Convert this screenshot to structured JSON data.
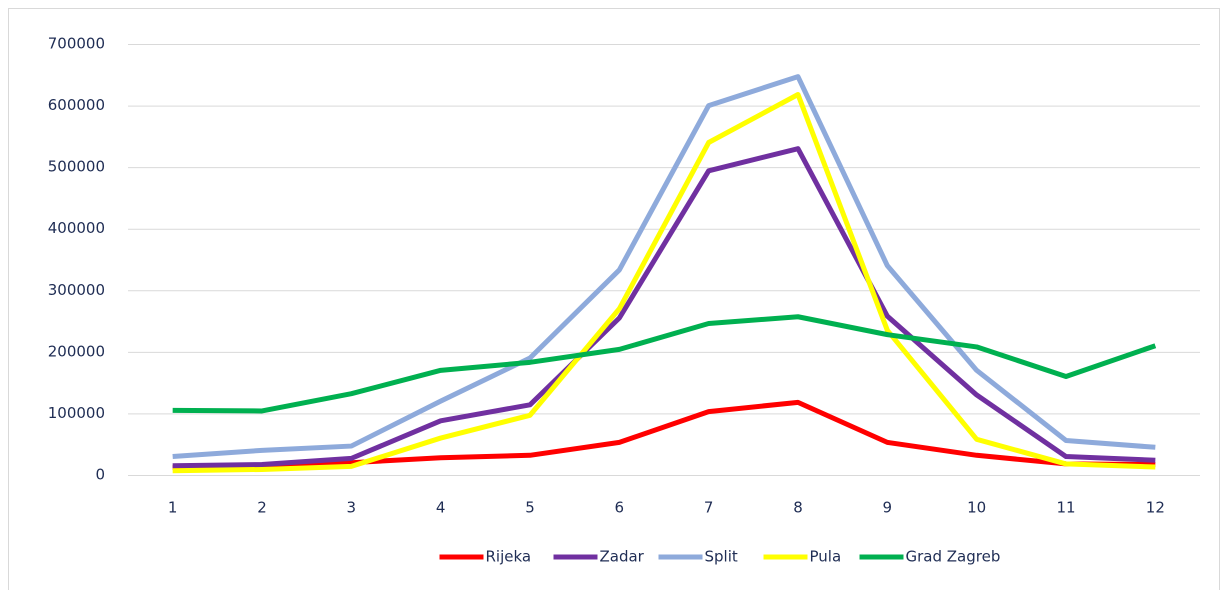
{
  "chart_data": {
    "type": "line",
    "categories": [
      "1",
      "2",
      "3",
      "4",
      "5",
      "6",
      "7",
      "8",
      "9",
      "10",
      "11",
      "12"
    ],
    "series": [
      {
        "name": "Rijeka",
        "color": "#ff0000",
        "values": [
          12000,
          14000,
          20000,
          28000,
          32000,
          53000,
          103000,
          118000,
          53000,
          32000,
          18000,
          17000
        ]
      },
      {
        "name": "Zadar",
        "color": "#7030a0",
        "values": [
          15000,
          17000,
          27000,
          88000,
          114000,
          255000,
          494000,
          530000,
          258000,
          130000,
          30000,
          24000
        ]
      },
      {
        "name": "Split",
        "color": "#8eaadb",
        "values": [
          30000,
          40000,
          47000,
          120000,
          190000,
          333000,
          600000,
          647000,
          340000,
          170000,
          56000,
          45000
        ]
      },
      {
        "name": "Pula",
        "color": "#ffff00",
        "values": [
          7000,
          9000,
          14000,
          60000,
          97000,
          270000,
          540000,
          618000,
          235000,
          58000,
          18000,
          13000
        ]
      },
      {
        "name": "Grad Zagreb",
        "color": "#00b050",
        "values": [
          105000,
          104000,
          132000,
          170000,
          183000,
          204000,
          246000,
          257000,
          228000,
          208000,
          160000,
          210000
        ]
      }
    ],
    "ylim": [
      0,
      700000
    ],
    "yticks": [
      0,
      100000,
      200000,
      300000,
      400000,
      500000,
      600000,
      700000
    ],
    "grid": true,
    "legend": "bottom"
  }
}
